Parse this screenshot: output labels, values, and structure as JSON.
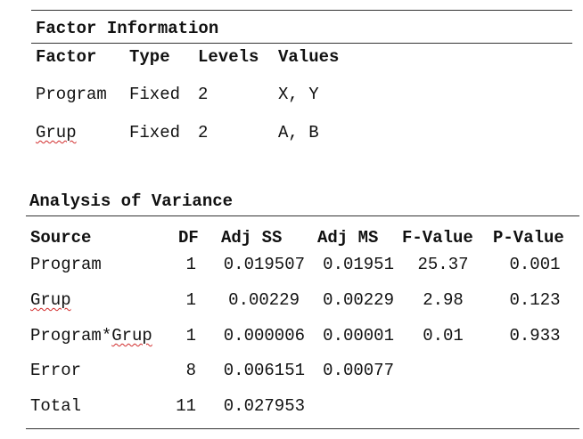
{
  "factor_info": {
    "title": "Factor Information",
    "headers": {
      "factor": "Factor",
      "type": "Type",
      "levels": "Levels",
      "values": "Values"
    },
    "rows": [
      {
        "factor": "Program",
        "type": "Fixed",
        "levels": "2",
        "values": "X, Y"
      },
      {
        "factor": "Grup",
        "type": "Fixed",
        "levels": "2",
        "values": "A, B"
      }
    ]
  },
  "anova": {
    "title": "Analysis of Variance",
    "headers": {
      "source": "Source",
      "df": "DF",
      "adj_ss": "Adj SS",
      "adj_ms": "Adj MS",
      "f_value": "F-Value",
      "p_value": "P-Value"
    },
    "rows": [
      {
        "source_a": "Program",
        "source_b": "",
        "df": "1",
        "adj_ss": "0.019507",
        "adj_ms": "0.01951",
        "f_value": "25.37",
        "p_value": "0.001"
      },
      {
        "source_a": "Grup",
        "source_b": "",
        "df": "1",
        "adj_ss": "0.00229",
        "adj_ms": "0.00229",
        "f_value": "2.98",
        "p_value": "0.123"
      },
      {
        "source_a": "Program*",
        "source_b": "Grup",
        "df": "1",
        "adj_ss": "0.000006",
        "adj_ms": "0.00001",
        "f_value": "0.01",
        "p_value": "0.933"
      },
      {
        "source_a": "Error",
        "source_b": "",
        "df": "8",
        "adj_ss": "0.006151",
        "adj_ms": "0.00077",
        "f_value": "",
        "p_value": ""
      },
      {
        "source_a": "Total",
        "source_b": "",
        "df": "11",
        "adj_ss": "0.027953",
        "adj_ms": "",
        "f_value": "",
        "p_value": ""
      }
    ]
  }
}
